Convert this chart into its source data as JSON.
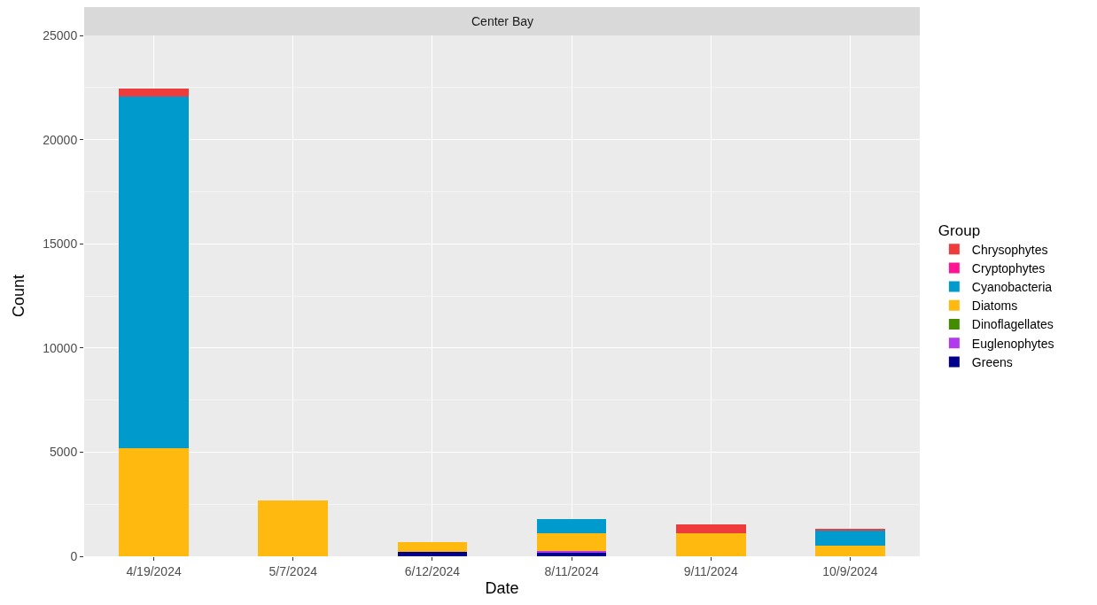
{
  "chart_data": {
    "type": "bar",
    "stacked": true,
    "title": "Center Bay",
    "xlabel": "Date",
    "ylabel": "Count",
    "legend_title": "Group",
    "categories": [
      "4/19/2024",
      "5/7/2024",
      "6/12/2024",
      "8/11/2024",
      "9/11/2024",
      "10/9/2024"
    ],
    "series": [
      {
        "name": "Greens",
        "color": "#00008b",
        "values": [
          0,
          0,
          200,
          200,
          0,
          0
        ]
      },
      {
        "name": "Euglenophytes",
        "color": "#b23aee",
        "values": [
          0,
          0,
          0,
          50,
          0,
          0
        ]
      },
      {
        "name": "Dinoflagellates",
        "color": "#458b00",
        "values": [
          0,
          0,
          0,
          0,
          0,
          0
        ]
      },
      {
        "name": "Diatoms",
        "color": "#ffb90f",
        "values": [
          5200,
          2700,
          480,
          840,
          1100,
          500
        ]
      },
      {
        "name": "Cyanobacteria",
        "color": "#009acd",
        "values": [
          16850,
          0,
          0,
          690,
          0,
          760
        ]
      },
      {
        "name": "Cryptophytes",
        "color": "#ff1493",
        "values": [
          0,
          0,
          0,
          0,
          0,
          0
        ]
      },
      {
        "name": "Chrysophytes",
        "color": "#ee3b3b",
        "values": [
          400,
          0,
          0,
          0,
          430,
          60
        ]
      }
    ],
    "ylim": [
      0,
      25000
    ],
    "yticks": [
      0,
      5000,
      10000,
      15000,
      20000,
      25000
    ],
    "grid": true,
    "legend": "right"
  }
}
